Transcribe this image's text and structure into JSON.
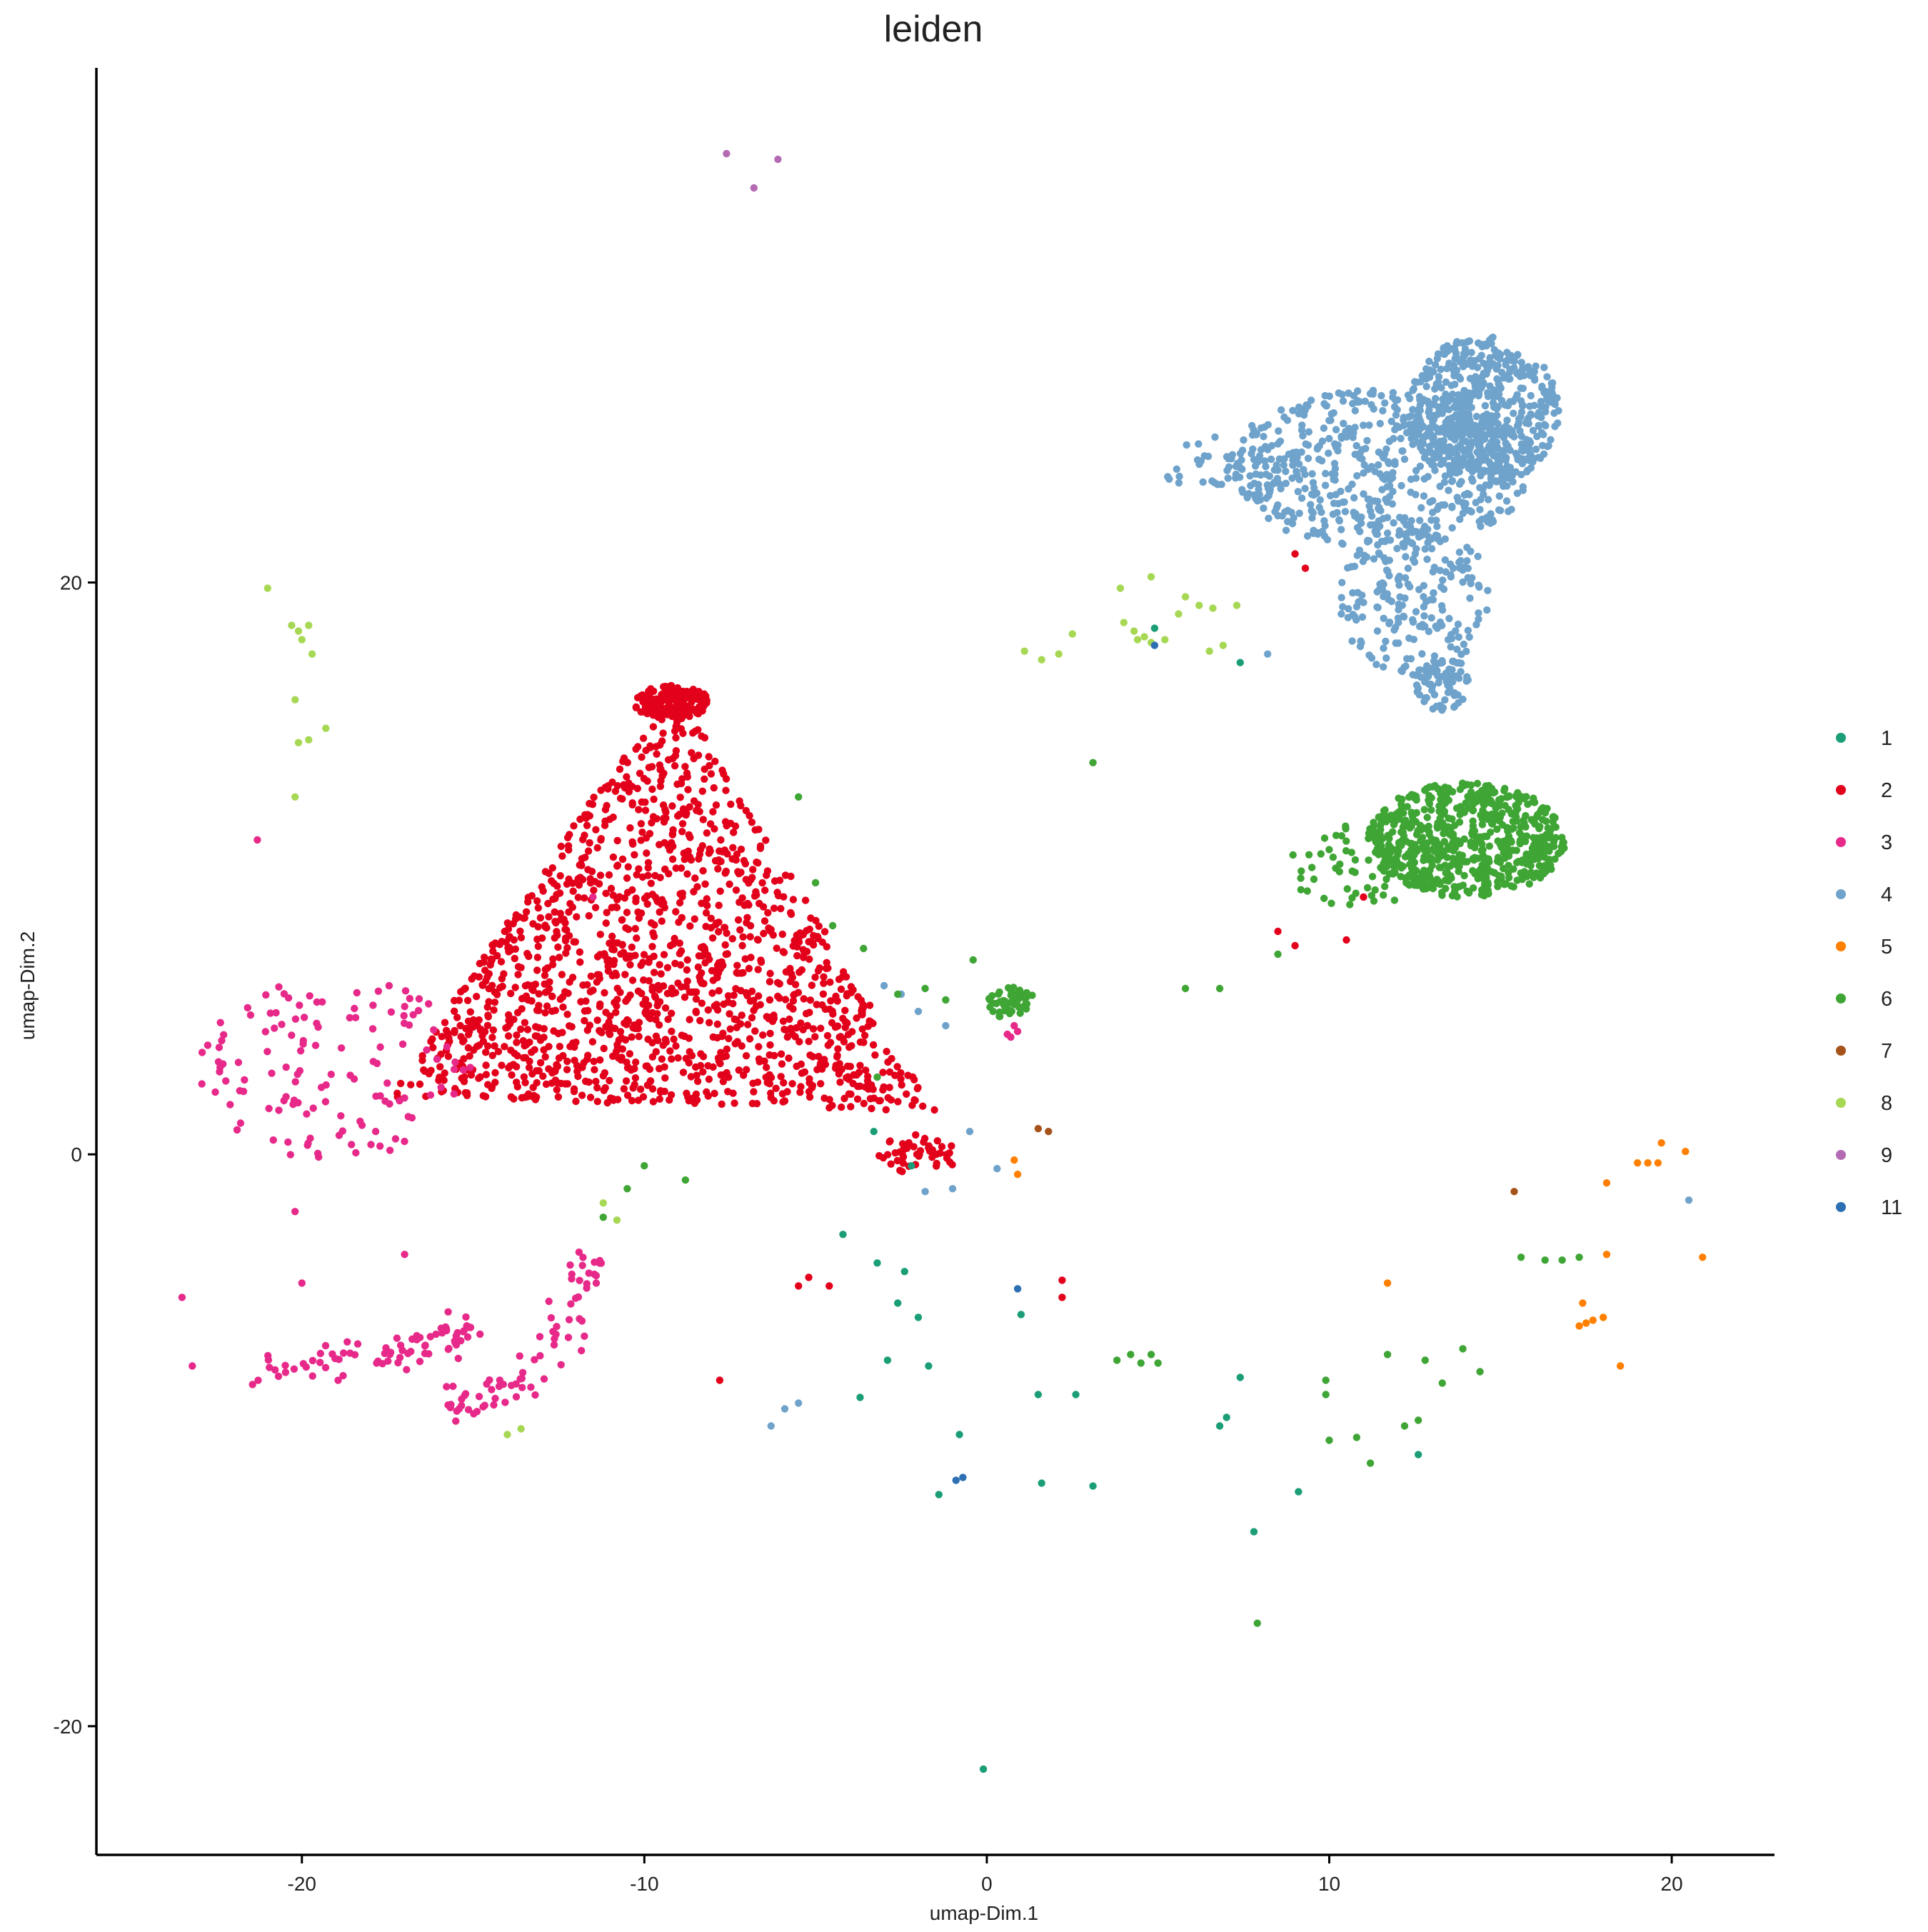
{
  "chart_data": {
    "type": "scatter",
    "title": "leiden",
    "xlabel": "umap-Dim.1",
    "ylabel": "umap-Dim.2",
    "xlim": [
      -26,
      23
    ],
    "ylim": [
      -24.5,
      38
    ],
    "xticks": [
      -20,
      -10,
      0,
      10,
      20
    ],
    "yticks": [
      -20,
      0,
      20
    ],
    "grid": false,
    "legend_position": "right",
    "legend": [
      {
        "label": "1",
        "color": "#1b9e77"
      },
      {
        "label": "2",
        "color": "#e3001b"
      },
      {
        "label": "3",
        "color": "#e7298a"
      },
      {
        "label": "4",
        "color": "#6fa3cb"
      },
      {
        "label": "5",
        "color": "#ff7f00"
      },
      {
        "label": "6",
        "color": "#3fa535"
      },
      {
        "label": "7",
        "color": "#a6521b"
      },
      {
        "label": "8",
        "color": "#a6d854"
      },
      {
        "label": "9",
        "color": "#b46bb3"
      },
      {
        "label": "11",
        "color": "#2c6fb2"
      }
    ],
    "series": [
      {
        "name": "2",
        "color": "#e3001b",
        "density_regions": [
          {
            "shape": "triangle",
            "vertices": [
              [
                -9.2,
                16.5
              ],
              [
                -17.5,
                2.0
              ],
              [
                -1.5,
                1.5
              ]
            ],
            "n": 1450
          },
          {
            "shape": "ellipse",
            "center": [
              -9.2,
              15.8
            ],
            "radii": [
              1.1,
              0.6
            ],
            "n": 170
          },
          {
            "shape": "ellipse",
            "center": [
              -2.0,
              0.0
            ],
            "radii": [
              1.2,
              0.7
            ],
            "n": 45
          }
        ],
        "points": [
          [
            -5.2,
            -4.3
          ],
          [
            -4.6,
            -4.6
          ],
          [
            -5.5,
            -4.6
          ],
          [
            -7.8,
            -7.9
          ],
          [
            2.2,
            -4.4
          ],
          [
            2.2,
            -5.0
          ],
          [
            9.0,
            21.0
          ],
          [
            9.3,
            20.5
          ],
          [
            11.0,
            9.0
          ],
          [
            9.0,
            7.3
          ],
          [
            10.5,
            7.5
          ],
          [
            8.5,
            7.8
          ]
        ]
      },
      {
        "name": "3",
        "color": "#e7298a",
        "density_regions": [
          {
            "shape": "ellipse",
            "center": [
              -19.0,
              3.0
            ],
            "radii": [
              4.0,
              3.3
            ],
            "n": 130
          },
          {
            "shape": "curve",
            "path": [
              [
                -21.0,
                -7.5
              ],
              [
                -19.0,
                -7.2
              ],
              [
                -17.5,
                -7.0
              ],
              [
                -16.0,
                -6.5
              ],
              [
                -15.0,
                -6.2
              ]
            ],
            "spread": 0.35,
            "n": 80
          },
          {
            "shape": "curve",
            "path": [
              [
                -16.0,
                -8.5
              ],
              [
                -15.0,
                -8.6
              ],
              [
                -13.5,
                -7.8
              ],
              [
                -12.5,
                -6.5
              ],
              [
                -12.0,
                -4.5
              ],
              [
                -11.2,
                -3.5
              ]
            ],
            "spread": 0.35,
            "n": 75
          }
        ],
        "points": [
          [
            0.8,
            4.5
          ],
          [
            0.7,
            4.1
          ],
          [
            0.9,
            4.3
          ],
          [
            0.6,
            4.2
          ],
          [
            -21.3,
            11.0
          ],
          [
            -23.5,
            -5.0
          ],
          [
            -23.2,
            -7.4
          ],
          [
            -20.0,
            -4.5
          ],
          [
            -20.2,
            -2.0
          ],
          [
            -17.0,
            -3.5
          ],
          [
            -11.5,
            9.0
          ]
        ]
      },
      {
        "name": "4",
        "color": "#6fa3cb",
        "density_regions": [
          {
            "shape": "ellipse",
            "center": [
              14.5,
              26.0
            ],
            "radii": [
              2.2,
              2.6
            ],
            "n": 550
          },
          {
            "shape": "ellipse",
            "center": [
              11.5,
              24.0
            ],
            "radii": [
              4.5,
              2.8
            ],
            "n": 520
          },
          {
            "shape": "ellipse",
            "center": [
              12.5,
              19.5
            ],
            "radii": [
              2.2,
              2.8
            ],
            "n": 210
          },
          {
            "shape": "ellipse",
            "center": [
              13.3,
              16.5
            ],
            "radii": [
              0.8,
              1.0
            ],
            "n": 70
          },
          {
            "shape": "ellipse",
            "center": [
              7.2,
              24.0
            ],
            "radii": [
              2.5,
              1.2
            ],
            "n": 45
          }
        ],
        "points": [
          [
            -3.0,
            5.9
          ],
          [
            -2.5,
            5.6
          ],
          [
            -2.0,
            5.0
          ],
          [
            -1.2,
            4.5
          ],
          [
            -0.5,
            0.8
          ],
          [
            -1.8,
            -1.3
          ],
          [
            -1.0,
            -1.2
          ],
          [
            0.3,
            -0.5
          ],
          [
            -5.5,
            -8.7
          ],
          [
            -5.9,
            -8.9
          ],
          [
            -6.3,
            -9.5
          ],
          [
            20.5,
            -1.6
          ],
          [
            11.0,
            19.3
          ],
          [
            8.2,
            17.5
          ]
        ]
      },
      {
        "name": "6",
        "color": "#3fa535",
        "density_regions": [
          {
            "shape": "ellipse",
            "center": [
              14.0,
              11.0
            ],
            "radii": [
              2.9,
              2.0
            ],
            "n": 640
          },
          {
            "shape": "ellipse",
            "center": [
              10.8,
              10.0
            ],
            "radii": [
              2.0,
              1.5
            ],
            "n": 55
          },
          {
            "shape": "ellipse",
            "center": [
              0.7,
              5.3
            ],
            "radii": [
              0.7,
              0.6
            ],
            "n": 45
          }
        ],
        "points": [
          [
            -10.0,
            -0.4
          ],
          [
            -10.5,
            -1.2
          ],
          [
            -8.8,
            -0.9
          ],
          [
            -11.2,
            -2.2
          ],
          [
            -5.5,
            12.5
          ],
          [
            -5.0,
            9.5
          ],
          [
            -4.5,
            8.0
          ],
          [
            -3.6,
            7.2
          ],
          [
            -2.6,
            5.6
          ],
          [
            -1.8,
            5.8
          ],
          [
            -1.2,
            5.4
          ],
          [
            -3.2,
            2.7
          ],
          [
            -0.4,
            6.8
          ],
          [
            3.1,
            13.7
          ],
          [
            5.8,
            5.8
          ],
          [
            6.8,
            5.8
          ],
          [
            8.5,
            7.0
          ],
          [
            15.6,
            -3.6
          ],
          [
            16.3,
            -3.7
          ],
          [
            17.3,
            -3.6
          ],
          [
            3.8,
            -7.2
          ],
          [
            4.2,
            -7.0
          ],
          [
            4.5,
            -7.3
          ],
          [
            4.8,
            -7.0
          ],
          [
            5.0,
            -7.3
          ],
          [
            11.7,
            -7.0
          ],
          [
            12.8,
            -7.2
          ],
          [
            13.9,
            -6.8
          ],
          [
            14.4,
            -7.6
          ],
          [
            12.2,
            -9.5
          ],
          [
            12.6,
            -9.3
          ],
          [
            10.8,
            -9.9
          ],
          [
            11.2,
            -10.8
          ],
          [
            10.0,
            -10.0
          ],
          [
            9.9,
            -7.9
          ],
          [
            9.9,
            -8.4
          ],
          [
            7.9,
            -16.4
          ],
          [
            16.8,
            -3.7
          ],
          [
            13.3,
            -8.0
          ]
        ]
      },
      {
        "name": "1",
        "color": "#1b9e77",
        "points": [
          [
            -4.2,
            -2.8
          ],
          [
            -3.2,
            -3.8
          ],
          [
            -2.4,
            -4.1
          ],
          [
            -2.6,
            -5.2
          ],
          [
            -2.0,
            -5.7
          ],
          [
            -2.9,
            -7.2
          ],
          [
            -1.7,
            -7.4
          ],
          [
            -3.7,
            -8.5
          ],
          [
            -0.8,
            -9.8
          ],
          [
            -1.4,
            -11.9
          ],
          [
            1.6,
            -11.5
          ],
          [
            3.1,
            -11.6
          ],
          [
            1.5,
            -8.4
          ],
          [
            2.6,
            -8.4
          ],
          [
            1.0,
            -5.6
          ],
          [
            7.4,
            -7.8
          ],
          [
            7.0,
            -9.2
          ],
          [
            6.8,
            -9.5
          ],
          [
            9.1,
            -11.8
          ],
          [
            7.8,
            -13.2
          ],
          [
            -0.1,
            -21.5
          ],
          [
            4.9,
            18.4
          ],
          [
            7.4,
            17.2
          ],
          [
            -2.2,
            -0.4
          ],
          [
            -3.3,
            0.8
          ],
          [
            12.6,
            -10.5
          ]
        ]
      },
      {
        "name": "5",
        "color": "#ff7f00",
        "points": [
          [
            19.7,
            0.4
          ],
          [
            20.4,
            0.1
          ],
          [
            19.0,
            -0.3
          ],
          [
            19.3,
            -0.3
          ],
          [
            19.6,
            -0.3
          ],
          [
            18.1,
            -1.0
          ],
          [
            18.1,
            -3.5
          ],
          [
            17.4,
            -5.2
          ],
          [
            17.3,
            -6.0
          ],
          [
            17.5,
            -5.9
          ],
          [
            17.7,
            -5.8
          ],
          [
            18.0,
            -5.7
          ],
          [
            18.5,
            -7.4
          ],
          [
            20.9,
            -3.6
          ],
          [
            11.7,
            -4.5
          ],
          [
            0.8,
            -0.2
          ],
          [
            0.9,
            -0.7
          ]
        ]
      },
      {
        "name": "7",
        "color": "#a6521b",
        "points": [
          [
            1.5,
            0.9
          ],
          [
            1.8,
            0.8
          ],
          [
            15.4,
            -1.3
          ]
        ]
      },
      {
        "name": "8",
        "color": "#a6d854",
        "points": [
          [
            -21.0,
            19.8
          ],
          [
            -20.3,
            18.5
          ],
          [
            -20.1,
            18.3
          ],
          [
            -19.8,
            18.5
          ],
          [
            -20.0,
            18.0
          ],
          [
            -19.7,
            17.5
          ],
          [
            -20.2,
            15.9
          ],
          [
            -19.8,
            14.5
          ],
          [
            -20.1,
            14.4
          ],
          [
            -19.3,
            14.9
          ],
          [
            -20.2,
            12.5
          ],
          [
            4.0,
            18.6
          ],
          [
            4.3,
            18.3
          ],
          [
            4.6,
            18.1
          ],
          [
            4.4,
            18.0
          ],
          [
            4.8,
            17.9
          ],
          [
            5.2,
            18.0
          ],
          [
            5.6,
            18.9
          ],
          [
            6.2,
            19.2
          ],
          [
            5.8,
            19.5
          ],
          [
            6.6,
            19.1
          ],
          [
            7.3,
            19.2
          ],
          [
            6.5,
            17.6
          ],
          [
            6.9,
            17.8
          ],
          [
            3.9,
            19.8
          ],
          [
            4.8,
            20.2
          ],
          [
            2.1,
            17.5
          ],
          [
            2.5,
            18.2
          ],
          [
            1.1,
            17.6
          ],
          [
            1.6,
            17.3
          ],
          [
            -11.2,
            -1.7
          ],
          [
            -10.8,
            -2.3
          ],
          [
            -14.0,
            -9.8
          ],
          [
            -13.6,
            -9.6
          ]
        ]
      },
      {
        "name": "9",
        "color": "#b46bb3",
        "points": [
          [
            -7.6,
            35.0
          ],
          [
            -6.8,
            33.8
          ],
          [
            -6.1,
            34.8
          ]
        ]
      },
      {
        "name": "11",
        "color": "#2c6fb2",
        "points": [
          [
            0.9,
            -4.7
          ],
          [
            -0.9,
            -11.4
          ],
          [
            -0.7,
            -11.3
          ],
          [
            4.9,
            17.8
          ]
        ]
      }
    ]
  }
}
